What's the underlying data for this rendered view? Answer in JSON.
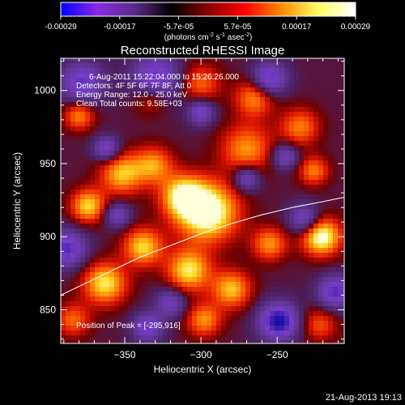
{
  "chart_data": {
    "type": "heatmap",
    "title": "Reconstructed RHESSI Image",
    "xlabel": "Heliocentric X (arcsec)",
    "ylabel": "Heliocentric Y (arcsec)",
    "xlim": [
      -392,
      -206
    ],
    "ylim": [
      827,
      1022
    ],
    "xticks": [
      -350,
      -300,
      -250
    ],
    "yticks": [
      850,
      900,
      950,
      1000
    ],
    "grid": false,
    "colorbar": {
      "ticks": [
        "-0.00029",
        "-0.00017",
        "-5.7e-05",
        "5.7e-05",
        "0.00017",
        "0.00029"
      ],
      "unit_prefix": "(photons cm",
      "unit_exp1": "-2",
      "unit_mid": " s",
      "unit_exp2": "-1",
      "unit_mid2": " asec",
      "unit_exp3": "-2",
      "unit_suffix": ")",
      "colors": [
        "#0000ff",
        "#8a2be2",
        "#5b2a8a",
        "#000000",
        "#8b0000",
        "#ff0000",
        "#ff8c00",
        "#ffff66",
        "#ffffff"
      ]
    },
    "annotations": [
      "6-Aug-2011 15:22:04.000 to 15:26:26.000",
      "Detectors: 4F 5F 6F 7F 8F, Att 0",
      "Energy Range: 12.0 - 25.0 keV",
      "Clean    Total counts: 9.58E+03"
    ],
    "peak_label": "Position of Peak = [-295,916]",
    "peak": [
      -295,
      916
    ],
    "limb": {
      "x": [
        -392,
        -380,
        -360,
        -340,
        -320,
        -300,
        -280,
        -260,
        -240,
        -220,
        -206
      ],
      "y": [
        860,
        866,
        876,
        886,
        894,
        902,
        909,
        915,
        920,
        924,
        927
      ]
    },
    "blobs": [
      {
        "x": -296,
        "y": 917,
        "r": 14,
        "v": 1.0
      },
      {
        "x": -312,
        "y": 928,
        "r": 10,
        "v": 0.7
      },
      {
        "x": -331,
        "y": 949,
        "r": 9,
        "v": 0.55
      },
      {
        "x": -221,
        "y": 900,
        "r": 9,
        "v": 0.9
      },
      {
        "x": -352,
        "y": 943,
        "r": 10,
        "v": 0.65
      },
      {
        "x": -374,
        "y": 921,
        "r": 8,
        "v": 0.7
      },
      {
        "x": -380,
        "y": 983,
        "r": 7,
        "v": 0.55
      },
      {
        "x": -338,
        "y": 893,
        "r": 9,
        "v": 0.7
      },
      {
        "x": -308,
        "y": 877,
        "r": 10,
        "v": 0.75
      },
      {
        "x": -363,
        "y": 868,
        "r": 10,
        "v": 0.75
      },
      {
        "x": -280,
        "y": 864,
        "r": 9,
        "v": 0.65
      },
      {
        "x": -255,
        "y": 895,
        "r": 8,
        "v": 0.55
      },
      {
        "x": -270,
        "y": 960,
        "r": 12,
        "v": 0.55
      },
      {
        "x": -235,
        "y": 975,
        "r": 9,
        "v": 0.5
      },
      {
        "x": -265,
        "y": 995,
        "r": 9,
        "v": 0.55
      },
      {
        "x": -300,
        "y": 1005,
        "r": 9,
        "v": 0.45
      },
      {
        "x": -333,
        "y": 995,
        "r": 8,
        "v": 0.4
      },
      {
        "x": -226,
        "y": 945,
        "r": 7,
        "v": 0.5
      },
      {
        "x": -384,
        "y": 843,
        "r": 8,
        "v": 0.45
      },
      {
        "x": -298,
        "y": 843,
        "r": 8,
        "v": 0.55
      },
      {
        "x": -222,
        "y": 840,
        "r": 8,
        "v": 0.4
      },
      {
        "x": -270,
        "y": 940,
        "r": 6,
        "v": -0.6
      },
      {
        "x": -255,
        "y": 1008,
        "r": 8,
        "v": -0.7
      },
      {
        "x": -330,
        "y": 1008,
        "r": 11,
        "v": -0.7
      },
      {
        "x": -378,
        "y": 1005,
        "r": 10,
        "v": -0.65
      },
      {
        "x": -249,
        "y": 842,
        "r": 9,
        "v": -0.9
      },
      {
        "x": -212,
        "y": 862,
        "r": 8,
        "v": -0.7
      },
      {
        "x": -232,
        "y": 912,
        "r": 7,
        "v": -0.6
      },
      {
        "x": -388,
        "y": 892,
        "r": 9,
        "v": -0.7
      },
      {
        "x": -355,
        "y": 915,
        "r": 6,
        "v": -0.5
      },
      {
        "x": -320,
        "y": 855,
        "r": 7,
        "v": -0.5
      },
      {
        "x": -335,
        "y": 838,
        "r": 7,
        "v": -0.6
      },
      {
        "x": -245,
        "y": 955,
        "r": 6,
        "v": -0.55
      },
      {
        "x": -300,
        "y": 985,
        "r": 6,
        "v": -0.6
      },
      {
        "x": -362,
        "y": 960,
        "r": 6,
        "v": -0.6
      }
    ]
  },
  "footer": {
    "timestamp": "21-Aug-2013 19:13"
  }
}
